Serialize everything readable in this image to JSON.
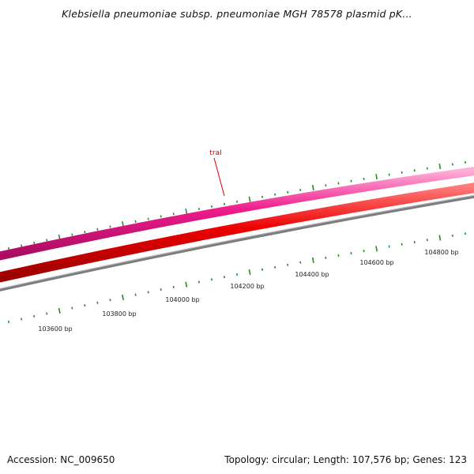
{
  "title": "Klebsiella pneumoniae subsp. pneumoniae MGH 78578 plasmid pK...",
  "footer": {
    "accession": "Accession: NC_009650",
    "summary": "Topology: circular; Length: 107,576 bp; Genes: 123"
  },
  "gene_label": "traI",
  "colors": {
    "forward_track": "#ee1c8c",
    "reverse_track": "#ee0000",
    "backbone": "#8a8a8a",
    "gc_marks": "#2a8a2a",
    "gene_label": "#cc0000"
  },
  "scale_labels": [
    "103600 bp",
    "103800 bp",
    "104000 bp",
    "104200 bp",
    "104400 bp",
    "104600 bp",
    "104800 bp"
  ]
}
